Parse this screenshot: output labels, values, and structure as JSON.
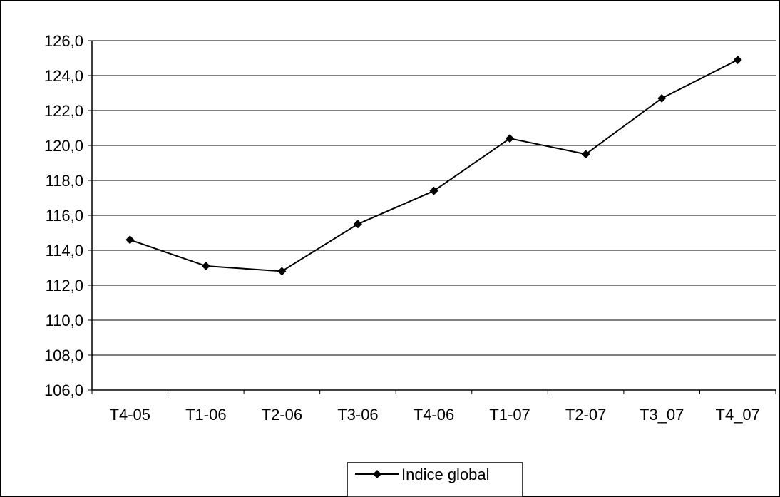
{
  "chart_data": {
    "type": "line",
    "categories": [
      "T4-05",
      "T1-06",
      "T2-06",
      "T3-06",
      "T4-06",
      "T1-07",
      "T2-07",
      "T3_07",
      "T4_07"
    ],
    "series": [
      {
        "name": "Indice global",
        "values": [
          114.6,
          113.1,
          112.8,
          115.5,
          117.4,
          120.4,
          119.5,
          122.7,
          124.9
        ],
        "color": "#000000",
        "marker": "diamond"
      }
    ],
    "yticks": [
      "106,0",
      "108,0",
      "110,0",
      "112,0",
      "114,0",
      "116,0",
      "118,0",
      "120,0",
      "122,0",
      "124,0",
      "126,0"
    ],
    "ylim": [
      106,
      126
    ],
    "ystep": 2,
    "grid": true,
    "legend_position": "bottom",
    "title": "",
    "xlabel": "",
    "ylabel": ""
  }
}
